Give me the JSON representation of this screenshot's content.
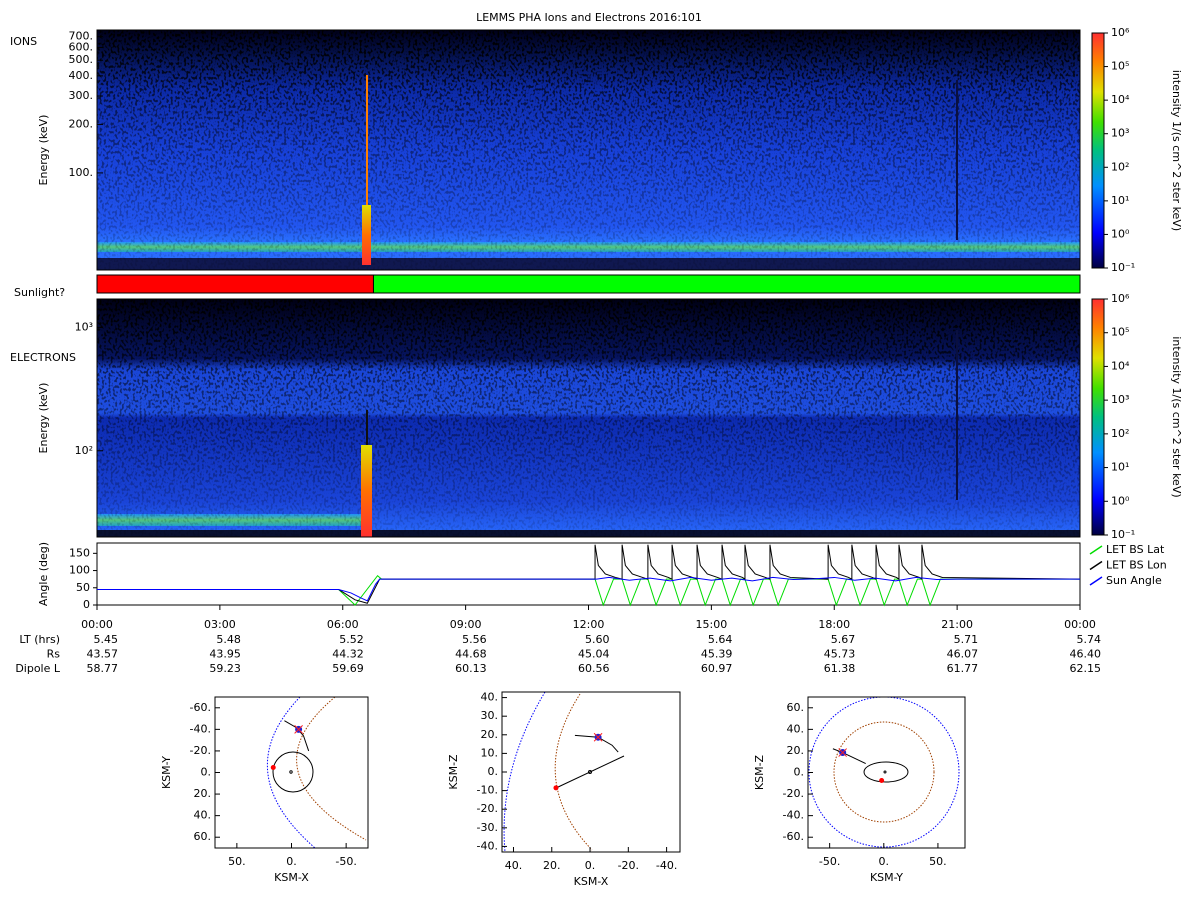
{
  "chart_data": [
    {
      "type": "spectrogram",
      "title": "LEMMS PHA Ions and Electrons  2016:101",
      "label": "IONS",
      "ylabel": "Energy (keV)",
      "ylog": true,
      "ylim": [
        25,
        770
      ],
      "yticks": [
        {
          "value": 100,
          "label": "100."
        },
        {
          "value": 200,
          "label": "200."
        },
        {
          "value": 300,
          "label": "300."
        },
        {
          "value": 400,
          "label": "400."
        },
        {
          "value": 500,
          "label": "500."
        },
        {
          "value": 600,
          "label": "600."
        },
        {
          "value": 700,
          "label": "700."
        }
      ],
      "colorbar": {
        "label": "intensity 1/(s cm^2 ster keV)",
        "log": true,
        "lim": [
          0.1,
          1000000
        ],
        "ticks": [
          {
            "value": 0.1,
            "label": "10⁻¹"
          },
          {
            "value": 1,
            "label": "10⁰"
          },
          {
            "value": 10,
            "label": "10¹"
          },
          {
            "value": 100,
            "label": "10²"
          },
          {
            "value": 1000,
            "label": "10³"
          },
          {
            "value": 10000,
            "label": "10⁴"
          },
          {
            "value": 100000,
            "label": "10⁵"
          },
          {
            "value": 1000000,
            "label": "10⁶"
          }
        ]
      }
    },
    {
      "type": "timeline",
      "label": "Sunlight?",
      "xlim": [
        0,
        24
      ],
      "segments": [
        {
          "start": 0,
          "end": 6.75,
          "color": "#ff0000"
        },
        {
          "start": 6.75,
          "end": 24,
          "color": "#00ff00"
        }
      ]
    },
    {
      "type": "spectrogram",
      "label": "ELECTRONS",
      "ylabel": "Energy (keV)",
      "ylog": true,
      "ylim": [
        20,
        1700
      ],
      "yticks": [
        {
          "value": 100,
          "label": "10²"
        },
        {
          "value": 1000,
          "label": "10³"
        }
      ],
      "colorbar": {
        "label": "intensity 1/(s cm^2 ster keV)",
        "log": true,
        "lim": [
          0.1,
          1000000
        ],
        "ticks": [
          {
            "value": 0.1,
            "label": "10⁻¹"
          },
          {
            "value": 1,
            "label": "10⁰"
          },
          {
            "value": 10,
            "label": "10¹"
          },
          {
            "value": 100,
            "label": "10²"
          },
          {
            "value": 1000,
            "label": "10³"
          },
          {
            "value": 10000,
            "label": "10⁴"
          },
          {
            "value": 100000,
            "label": "10⁵"
          },
          {
            "value": 1000000,
            "label": "10⁶"
          }
        ]
      }
    },
    {
      "type": "line",
      "ylabel": "Angle (deg)",
      "xlim": [
        0,
        24
      ],
      "ylim": [
        0,
        180
      ],
      "yticks": [
        0,
        50,
        100,
        150
      ],
      "legend": "right",
      "xticks": [
        {
          "value": 0,
          "label": "00:00"
        },
        {
          "value": 3,
          "label": "03:00"
        },
        {
          "value": 6,
          "label": "06:00"
        },
        {
          "value": 9,
          "label": "09:00"
        },
        {
          "value": 12,
          "label": "12:00"
        },
        {
          "value": 15,
          "label": "15:00"
        },
        {
          "value": 18,
          "label": "18:00"
        },
        {
          "value": 21,
          "label": "21:00"
        },
        {
          "value": 24,
          "label": "00:00"
        }
      ],
      "series": [
        {
          "name": "LET BS Lat",
          "color": "#00dd00",
          "x": [
            0,
            5.9,
            6.3,
            6.85,
            6.95,
            12.16,
            12.36,
            12.61,
            12.82,
            13.02,
            13.27,
            13.45,
            13.65,
            13.9,
            14.04,
            14.24,
            14.49,
            14.65,
            14.85,
            15.1,
            15.26,
            15.46,
            15.71,
            15.82,
            16.02,
            16.27,
            16.43,
            16.63,
            16.88,
            17.85,
            18.05,
            18.3,
            18.43,
            18.63,
            18.88,
            19.02,
            19.22,
            19.47,
            19.58,
            19.78,
            20.03,
            20.14,
            20.34,
            20.59,
            24
          ],
          "values": [
            45,
            45,
            0,
            85,
            75,
            75,
            0,
            75,
            75,
            0,
            75,
            75,
            0,
            75,
            75,
            0,
            75,
            75,
            0,
            75,
            75,
            0,
            75,
            75,
            0,
            75,
            75,
            0,
            75,
            75,
            0,
            75,
            75,
            0,
            75,
            75,
            0,
            75,
            75,
            0,
            75,
            75,
            0,
            75,
            75
          ]
        },
        {
          "name": "LET BS Lon",
          "color": "#000000",
          "x": [
            0,
            5.9,
            6.3,
            6.6,
            6.9,
            12.16,
            12.16,
            12.24,
            12.41,
            12.66,
            12.82,
            12.82,
            12.9,
            13.07,
            13.32,
            13.45,
            13.45,
            13.53,
            13.7,
            13.95,
            14.04,
            14.04,
            14.12,
            14.29,
            14.54,
            14.65,
            14.65,
            14.73,
            14.9,
            15.15,
            15.26,
            15.26,
            15.34,
            15.51,
            15.76,
            15.82,
            15.82,
            15.9,
            16.07,
            16.32,
            16.43,
            16.43,
            16.51,
            16.68,
            16.93,
            17.85,
            17.85,
            17.93,
            18.1,
            18.35,
            18.43,
            18.43,
            18.51,
            18.68,
            18.93,
            19.02,
            19.02,
            19.1,
            19.27,
            19.52,
            19.58,
            19.58,
            19.66,
            19.83,
            20.08,
            20.14,
            20.14,
            20.22,
            20.39,
            20.64,
            24
          ],
          "values": [
            45,
            45,
            15,
            5,
            75,
            75,
            175,
            115,
            90,
            80,
            75,
            175,
            115,
            90,
            80,
            75,
            175,
            115,
            90,
            80,
            75,
            175,
            115,
            90,
            80,
            75,
            175,
            115,
            90,
            80,
            75,
            175,
            115,
            90,
            80,
            75,
            175,
            115,
            90,
            80,
            75,
            175,
            115,
            90,
            80,
            75,
            175,
            115,
            90,
            80,
            75,
            175,
            115,
            90,
            80,
            75,
            175,
            115,
            90,
            80,
            75,
            175,
            115,
            90,
            80,
            75,
            175,
            115,
            90,
            80,
            75
          ]
        },
        {
          "name": "Sun Angle",
          "color": "#0000ff",
          "x": [
            0,
            5.9,
            6.2,
            6.45,
            6.6,
            6.8,
            6.9,
            12.2,
            12.5,
            13,
            13.5,
            14,
            14.5,
            15,
            15.5,
            16,
            16.5,
            17,
            17.5,
            18,
            18.5,
            19,
            19.5,
            20,
            20.5,
            21,
            24
          ],
          "values": [
            45,
            45,
            35,
            20,
            12,
            60,
            75,
            75,
            80,
            72,
            78,
            70,
            80,
            72,
            78,
            70,
            80,
            74,
            76,
            80,
            72,
            78,
            70,
            80,
            74,
            75,
            75
          ]
        }
      ],
      "ephemeris": [
        {
          "label": "LT (hrs)",
          "values": [
            "5.45",
            "5.48",
            "5.52",
            "5.56",
            "5.60",
            "5.64",
            "5.67",
            "5.71",
            "5.74"
          ]
        },
        {
          "label": "Rs",
          "values": [
            "43.57",
            "43.95",
            "44.32",
            "44.68",
            "45.04",
            "45.39",
            "45.73",
            "46.07",
            "46.40"
          ]
        },
        {
          "label": "Dipole L",
          "values": [
            "58.77",
            "59.23",
            "59.69",
            "60.13",
            "60.56",
            "60.97",
            "61.38",
            "61.77",
            "62.15"
          ]
        }
      ]
    },
    {
      "type": "orbit",
      "xlabel": "KSM-X",
      "ylabel": "KSM-Y",
      "xlim": [
        70,
        -70
      ],
      "ylim": [
        70,
        -70
      ],
      "xticks": [
        {
          "value": 50,
          "label": "50."
        },
        {
          "value": 0,
          "label": "0."
        },
        {
          "value": -50,
          "label": "-50."
        }
      ],
      "yticks": [
        {
          "value": -60,
          "label": "-60."
        },
        {
          "value": -40,
          "label": "-40."
        },
        {
          "value": -20,
          "label": "-20."
        },
        {
          "value": 0,
          "label": "0."
        },
        {
          "value": 20,
          "label": "20."
        },
        {
          "value": 40,
          "label": "40."
        },
        {
          "value": 60,
          "label": "60."
        }
      ],
      "trajectory": {
        "x": [
          6.5,
          -4.6,
          -11,
          -15.7
        ],
        "y": [
          -48,
          -41.5,
          -34,
          -20
        ]
      },
      "spacecraft": [
        -6.5,
        -40
      ],
      "moon": [
        16.7,
        -4.6
      ]
    },
    {
      "type": "orbit",
      "xlabel": "KSM-X",
      "ylabel": "KSM-Z",
      "xlim": [
        46,
        -47
      ],
      "ylim": [
        -43,
        43
      ],
      "xticks": [
        {
          "value": 40,
          "label": "40."
        },
        {
          "value": 20,
          "label": "20."
        },
        {
          "value": 0,
          "label": "0."
        },
        {
          "value": -20,
          "label": "-20."
        },
        {
          "value": -40,
          "label": "-40."
        }
      ],
      "yticks": [
        {
          "value": 40,
          "label": "40."
        },
        {
          "value": 30,
          "label": "30."
        },
        {
          "value": 20,
          "label": "20."
        },
        {
          "value": 10,
          "label": "10."
        },
        {
          "value": 0,
          "label": "0."
        },
        {
          "value": -10,
          "label": "-10."
        },
        {
          "value": -20,
          "label": "-20."
        },
        {
          "value": -30,
          "label": "-30."
        },
        {
          "value": -40,
          "label": "-40."
        }
      ],
      "trajectory": {
        "x": [
          7.9,
          -4.2,
          -11.5,
          -14.7
        ],
        "y": [
          19.7,
          18.7,
          14.4,
          10.7
        ]
      },
      "spacecraft": [
        -4.2,
        18.7
      ],
      "moon": [
        17.8,
        -8.5
      ]
    },
    {
      "type": "orbit",
      "xlabel": "KSM-Y",
      "ylabel": "KSM-Z",
      "xlim": [
        -70,
        75
      ],
      "ylim": [
        -70,
        70
      ],
      "xticks": [
        {
          "value": -50,
          "label": "-50."
        },
        {
          "value": 0,
          "label": "0."
        },
        {
          "value": 50,
          "label": "50."
        }
      ],
      "yticks": [
        {
          "value": 60,
          "label": "60."
        },
        {
          "value": 40,
          "label": "40."
        },
        {
          "value": 20,
          "label": "20."
        },
        {
          "value": 0,
          "label": "0."
        },
        {
          "value": -20,
          "label": "-20."
        },
        {
          "value": -40,
          "label": "-40."
        },
        {
          "value": -60,
          "label": "-60."
        }
      ],
      "trajectory": {
        "x": [
          -47,
          -38,
          -16.7
        ],
        "y": [
          22,
          18.5,
          8.3
        ]
      },
      "spacecraft": [
        -38,
        18.5
      ],
      "moon": [
        -2,
        -7.4
      ]
    }
  ]
}
